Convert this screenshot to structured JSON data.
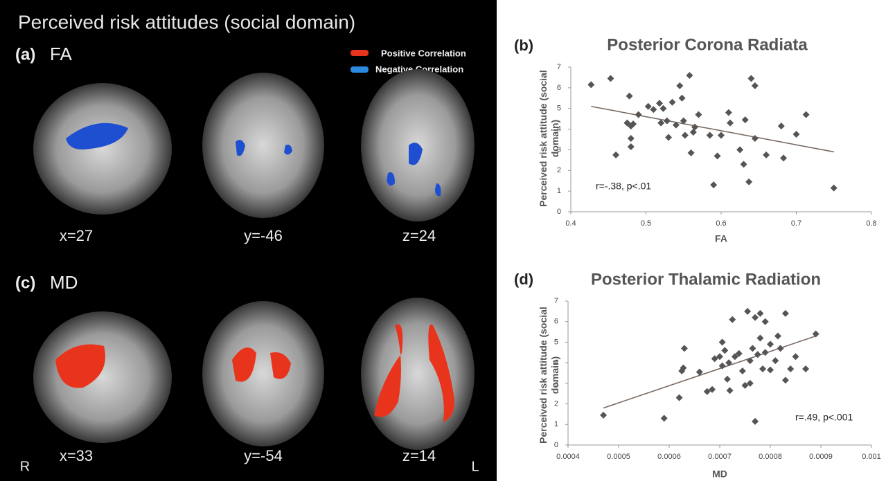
{
  "figure": {
    "title": "Perceived risk attitudes (social domain)",
    "legend": [
      {
        "name": "Positive Correlation",
        "color": "#e8341c"
      },
      {
        "name": "Negative Correlation",
        "color": "#2a8be0"
      }
    ],
    "panels": [
      {
        "label": "(a)",
        "measure": "FA",
        "slices": [
          "x=27",
          "y=-46",
          "z=24"
        ]
      },
      {
        "label": "(c)",
        "measure": "MD",
        "slices": [
          "x=33",
          "y=-54",
          "z=14"
        ]
      }
    ],
    "orientation": [
      "R",
      "L"
    ]
  },
  "chart_data": [
    {
      "type": "scatter",
      "panel_label": "(b)",
      "title": "Posterior Corona Radiata",
      "x_label": "FA",
      "y_label": "Perceived risk attitude (social domain)",
      "annotation": "r=-.38, p<.01",
      "color": "#555555",
      "xlim": [
        0.4,
        0.8
      ],
      "xticks": [
        0.4,
        0.5,
        0.6,
        0.7,
        0.8
      ],
      "ylim": [
        0,
        7
      ],
      "yticks": [
        0,
        1,
        2,
        3,
        4,
        5,
        6,
        7
      ],
      "x": [
        0.427,
        0.453,
        0.46,
        0.475,
        0.478,
        0.48,
        0.48,
        0.48,
        0.483,
        0.49,
        0.503,
        0.51,
        0.518,
        0.52,
        0.523,
        0.528,
        0.53,
        0.535,
        0.54,
        0.545,
        0.548,
        0.55,
        0.552,
        0.558,
        0.56,
        0.563,
        0.565,
        0.57,
        0.585,
        0.59,
        0.595,
        0.6,
        0.61,
        0.612,
        0.625,
        0.63,
        0.632,
        0.637,
        0.64,
        0.645,
        0.645,
        0.66,
        0.68,
        0.683,
        0.7,
        0.713,
        0.75
      ],
      "values": [
        6.15,
        6.45,
        2.75,
        4.3,
        5.6,
        4.15,
        3.55,
        3.15,
        4.25,
        4.7,
        5.1,
        4.95,
        5.25,
        4.3,
        5.0,
        4.4,
        3.6,
        5.3,
        4.2,
        6.1,
        5.5,
        4.4,
        3.7,
        6.6,
        2.85,
        3.85,
        4.1,
        4.7,
        3.7,
        1.3,
        2.7,
        3.7,
        4.8,
        4.3,
        3.0,
        2.3,
        4.45,
        1.45,
        6.45,
        6.1,
        3.55,
        2.75,
        4.15,
        2.6,
        3.75,
        4.7,
        1.15
      ],
      "trendline": {
        "x": [
          0.427,
          0.75
        ],
        "y": [
          5.1,
          2.9
        ]
      }
    },
    {
      "type": "scatter",
      "panel_label": "(d)",
      "title": "Posterior Thalamic Radiation",
      "x_label": "MD",
      "y_label": "Perceived risk attitude (social domain)",
      "annotation": "r=.49, p<.001",
      "color": "#555555",
      "xlim": [
        0.0004,
        0.001
      ],
      "xticks": [
        0.0004,
        0.0005,
        0.0006,
        0.0007,
        0.0008,
        0.0009,
        0.001
      ],
      "ylim": [
        0,
        7
      ],
      "yticks": [
        0,
        1,
        2,
        3,
        4,
        5,
        6,
        7
      ],
      "x": [
        0.00047,
        0.00059,
        0.00062,
        0.000625,
        0.000628,
        0.00063,
        0.00066,
        0.000675,
        0.000685,
        0.00069,
        0.0007,
        0.000705,
        0.000705,
        0.00071,
        0.000715,
        0.000718,
        0.00072,
        0.000725,
        0.00073,
        0.000738,
        0.000745,
        0.00075,
        0.000755,
        0.00076,
        0.00076,
        0.000765,
        0.00077,
        0.00077,
        0.000775,
        0.00078,
        0.00078,
        0.000785,
        0.00079,
        0.00079,
        0.0008,
        0.0008,
        0.00081,
        0.000815,
        0.00082,
        0.00083,
        0.00083,
        0.00084,
        0.00085,
        0.00087,
        0.00089
      ],
      "values": [
        1.45,
        1.3,
        2.3,
        3.6,
        3.75,
        4.7,
        3.55,
        2.6,
        2.7,
        4.2,
        4.3,
        5.0,
        3.85,
        4.6,
        3.2,
        4.0,
        2.65,
        6.1,
        4.3,
        4.45,
        3.6,
        2.9,
        6.5,
        3.0,
        4.1,
        4.7,
        6.2,
        1.15,
        4.4,
        5.2,
        6.4,
        3.7,
        4.5,
        6.0,
        4.9,
        3.65,
        4.1,
        5.3,
        4.7,
        6.4,
        3.15,
        3.7,
        4.3,
        3.7,
        5.4
      ],
      "trendline": {
        "x": [
          0.00047,
          0.00089
        ],
        "y": [
          1.8,
          5.3
        ]
      }
    }
  ]
}
